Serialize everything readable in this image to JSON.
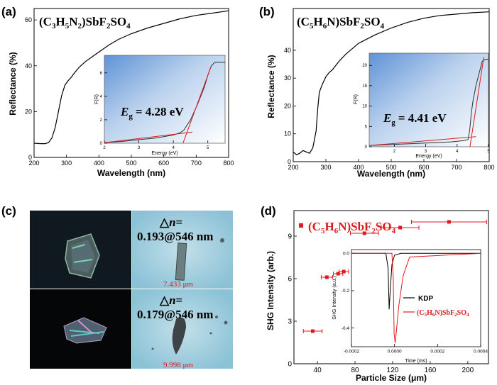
{
  "panel_labels": {
    "a": "(a)",
    "b": "(b)",
    "c": "(c)",
    "d": "(d)"
  },
  "compounds": {
    "a": {
      "pre": "(C",
      "s1": "3",
      "m1": "H",
      "s2": "5",
      "m2": "N",
      "s3": "2",
      "m3": ")SbF",
      "s4": "2",
      "m4": "SO",
      "s5": "4"
    },
    "b": {
      "pre": "(C",
      "s1": "5",
      "m1": "H",
      "s2": "6",
      "m2": "N)SbF",
      "s3": "2",
      "m3": "SO",
      "s4": "4"
    }
  },
  "chart_data": [
    {
      "id": "a",
      "type": "line",
      "title": "(C3H5N2)SbF2SO4",
      "xlabel": "Wavelength (nm)",
      "ylabel": "Reflectance (%)",
      "xlim": [
        200,
        800
      ],
      "ylim": [
        0,
        65
      ],
      "xticks": [
        "200",
        "300",
        "400",
        "500",
        "600",
        "700",
        "800"
      ],
      "yticks": [
        "0",
        "20",
        "40",
        "60"
      ],
      "series": [
        {
          "name": "Reflectance",
          "x": [
            200,
            220,
            235,
            245,
            255,
            265,
            275,
            285,
            295,
            305,
            315,
            325,
            340,
            360,
            380,
            400,
            430,
            460,
            500,
            550,
            600,
            650,
            700,
            750,
            800
          ],
          "y": [
            6.2,
            6.0,
            6.0,
            6.5,
            8.5,
            13,
            20,
            27,
            31.5,
            33.5,
            35,
            37,
            39.5,
            42,
            44,
            46,
            49,
            51.5,
            54,
            56.5,
            58.5,
            60.5,
            62,
            63,
            64
          ]
        }
      ],
      "inset": {
        "xlabel": "Energy (eV)",
        "ylabel": "F(R)",
        "xlim": [
          2,
          5.5
        ],
        "ylim": [
          0,
          7.5
        ],
        "xticks": [
          "2",
          "3",
          "4",
          "5"
        ],
        "yticks": [
          "0",
          "2",
          "4",
          "6"
        ],
        "bandgap_label": "E",
        "bandgap_sub": "g",
        "bandgap_value": "= 4.28 eV",
        "x": [
          2,
          2.5,
          3,
          3.5,
          4,
          4.2,
          4.3,
          4.5,
          4.7,
          4.9,
          5,
          5.1,
          5.2,
          5.4,
          5.5
        ],
        "y": [
          0.05,
          0.15,
          0.3,
          0.45,
          0.7,
          0.9,
          1.1,
          2.0,
          3.3,
          4.8,
          5.8,
          6.6,
          6.9,
          6.9,
          6.9
        ],
        "fit_steep": {
          "x": [
            4.28,
            5.1
          ],
          "y": [
            0,
            6.6
          ]
        },
        "fit_base": {
          "x": [
            2,
            4.55
          ],
          "y": [
            0.05,
            0.95
          ]
        }
      }
    },
    {
      "id": "b",
      "type": "line",
      "title": "(C5H6N)SbF2SO4",
      "xlabel": "Wavelength (nm)",
      "ylabel": "Reflectance (%)",
      "xlim": [
        200,
        800
      ],
      "ylim": [
        0,
        55
      ],
      "xticks": [
        "200",
        "300",
        "400",
        "500",
        "600",
        "700",
        "800"
      ],
      "yticks": [
        "0",
        "10",
        "20",
        "30",
        "40"
      ],
      "series": [
        {
          "name": "Reflectance",
          "x": [
            200,
            210,
            220,
            230,
            240,
            250,
            260,
            270,
            275,
            280,
            285,
            290,
            300,
            310,
            320,
            340,
            360,
            380,
            400,
            450,
            500,
            550,
            600,
            650,
            700,
            750,
            800
          ],
          "y": [
            3.5,
            2.5,
            3,
            4,
            3.5,
            3,
            5,
            11,
            19,
            25,
            26.5,
            28,
            30.5,
            32,
            33,
            36,
            38.5,
            40.5,
            42.5,
            45.5,
            48,
            50,
            51.5,
            52.5,
            53,
            53.5,
            53.8
          ]
        }
      ],
      "inset": {
        "xlabel": "Energy (eV)",
        "ylabel": "F(R)",
        "xlim": [
          1.2,
          5
        ],
        "ylim": [
          0,
          23
        ],
        "xticks": [
          "2",
          "3",
          "4",
          "5"
        ],
        "yticks": [
          "0",
          "5",
          "10",
          "15",
          "20"
        ],
        "bandgap_label": "E",
        "bandgap_sub": "g",
        "bandgap_value": "= 4.41 eV",
        "x": [
          1.2,
          2,
          3,
          3.8,
          4.2,
          4.35,
          4.4,
          4.45,
          4.5,
          4.6,
          4.7,
          4.8,
          4.9,
          5
        ],
        "y": [
          0.3,
          0.6,
          0.9,
          1.2,
          1.5,
          1.8,
          4,
          8,
          11,
          15,
          18,
          21,
          21.5,
          21.5
        ],
        "fit_steep": {
          "x": [
            4.41,
            4.85
          ],
          "y": [
            0,
            22
          ]
        },
        "fit_base": {
          "x": [
            1.2,
            4.6
          ],
          "y": [
            0.3,
            2.5
          ]
        }
      }
    },
    {
      "id": "d",
      "type": "scatter",
      "title": "(C5H6N)SbF2SO4",
      "xlabel": "Particle Size (μm)",
      "ylabel": "SHG Intensity (arb.)",
      "xlim": [
        15,
        222
      ],
      "ylim": [
        0,
        10.8
      ],
      "xticks": [
        "40",
        "80",
        "120",
        "160",
        "200"
      ],
      "yticks": [
        "0",
        "3",
        "6",
        "9"
      ],
      "series": [
        {
          "name": "(C5H6N)SbF2SO4",
          "x": [
            35,
            50,
            62,
            68,
            90,
            128,
            180
          ],
          "y": [
            2.3,
            6.1,
            6.35,
            6.5,
            9.2,
            9.6,
            10.0
          ],
          "xerr": [
            10,
            6,
            5,
            5,
            15,
            20,
            40
          ]
        }
      ],
      "inset": {
        "xlabel": "Time (ms)",
        "ylabel": "SHG Intensity (a.u.)",
        "xlim": [
          -0.0002,
          0.0004
        ],
        "ylim": [
          -0.5,
          0.02
        ],
        "xticks": [
          "-0.0002",
          "0.0000",
          "0.0002",
          "0.0004"
        ],
        "yticks": [
          "-0.4",
          "-0.2",
          "0.0"
        ],
        "series": [
          {
            "name": "KDP",
            "color": "#000000",
            "x": [
              -0.0002,
              -4e-05,
              -3e-05,
              -2.5e-05,
              -2e-05,
              -1.2e-05,
              0,
              3e-05,
              0.0004
            ],
            "y": [
              0,
              0,
              -0.08,
              -0.3,
              -0.2,
              -0.06,
              -0.01,
              0,
              0
            ]
          },
          {
            "name": "(C5H6N)SbF2SO4",
            "color": "#e0191c",
            "x": [
              -0.0002,
              -1.2e-05,
              -6e-06,
              -2e-06,
              3e-06,
              1e-05,
              2e-05,
              4e-05,
              7e-05,
              0.0004
            ],
            "y": [
              0,
              0,
              -0.12,
              -0.43,
              -0.48,
              -0.4,
              -0.28,
              -0.12,
              -0.02,
              0
            ]
          }
        ]
      }
    }
  ],
  "micrographs": {
    "top": {
      "label_sym": "△",
      "label_n": "n",
      "label_eq": "=",
      "value": "0.193@546 nm",
      "scale": "7.433 μm"
    },
    "bottom": {
      "label_sym": "△",
      "label_n": "n",
      "label_eq": "=",
      "value": "0.179@546 nm",
      "scale": "9.998 μm"
    }
  },
  "legend_d": {
    "kdp": "KDP",
    "s_pre": "(C",
    "s1": "5",
    "s_m1": "H",
    "s2": "6",
    "s_m2": "N)SbF",
    "s3": "2",
    "s_m3": "SO",
    "s4": "4"
  },
  "main_legend_d": {
    "pre": "(C",
    "s1": "5",
    "m1": "H",
    "s2": "6",
    "m2": "N)SbF",
    "s3": "2",
    "m3": "SO",
    "s4": "4"
  },
  "colors": {
    "red": "#e0191c",
    "black": "#000000"
  }
}
